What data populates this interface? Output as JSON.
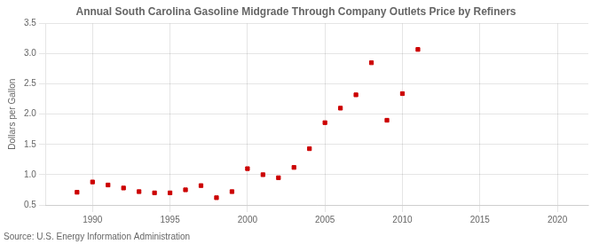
{
  "chart_data": {
    "type": "scatter",
    "title": "Annual South Carolina Gasoline Midgrade Through Company Outlets Price by Refiners",
    "ylabel": "Dollars per Gallon",
    "annotations": [
      "Source: U.S. Energy Information Administration"
    ],
    "color": "#cc0000",
    "marker": "square",
    "grid": true,
    "xlim": [
      1987,
      2022
    ],
    "ylim": [
      0.5,
      3.5
    ],
    "xticks": [
      1990,
      1995,
      2000,
      2005,
      2010,
      2015,
      2020
    ],
    "yticks": [
      0.5,
      {
        "value": 1.0,
        "label": "1.0"
      },
      1.5,
      {
        "value": 2.0,
        "label": "2.0"
      },
      2.5,
      {
        "value": 3.0,
        "label": "3.0"
      },
      3.5
    ],
    "x": [
      1989,
      1990,
      1991,
      1992,
      1993,
      1994,
      1995,
      1996,
      1997,
      1998,
      1999,
      2000,
      2001,
      2002,
      2003,
      2004,
      2005,
      2006,
      2007,
      2008,
      2009,
      2010,
      2011
    ],
    "values": [
      0.71,
      0.88,
      0.83,
      0.78,
      0.72,
      0.7,
      0.7,
      0.75,
      0.82,
      0.62,
      0.72,
      1.1,
      1.0,
      0.95,
      1.12,
      1.43,
      1.86,
      2.1,
      2.32,
      2.85,
      1.9,
      2.34,
      3.07
    ]
  }
}
